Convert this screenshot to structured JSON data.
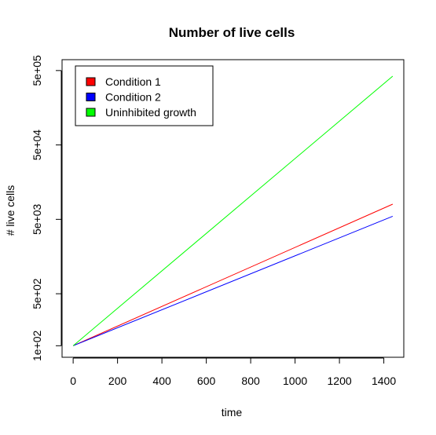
{
  "chart_data": {
    "type": "line",
    "title": "Number of live cells",
    "xlabel": "time",
    "ylabel": "# live cells",
    "xlim": [
      -50,
      1490
    ],
    "ylim": [
      70,
      700000
    ],
    "yscale": "log",
    "x_ticks": [
      0,
      200,
      400,
      600,
      800,
      1000,
      1200,
      1400
    ],
    "x_tick_labels": [
      "0",
      "200",
      "400",
      "600",
      "800",
      "1000",
      "1200",
      "1400"
    ],
    "y_ticks": [
      100,
      500,
      5000,
      50000,
      500000
    ],
    "y_tick_labels": [
      "1e+02",
      "5e+02",
      "5e+03",
      "5e+04",
      "5e+05"
    ],
    "grid": false,
    "legend_position": "top-left",
    "series": [
      {
        "name": "Condition 1",
        "color": "#ff0000",
        "x": [
          0,
          1440
        ],
        "y": [
          100,
          8000
        ]
      },
      {
        "name": "Condition 2",
        "color": "#0000ff",
        "x": [
          0,
          1440
        ],
        "y": [
          100,
          5500
        ]
      },
      {
        "name": "Uninhibited growth",
        "color": "#00ff00",
        "x": [
          0,
          1440
        ],
        "y": [
          100,
          420000
        ]
      }
    ]
  }
}
